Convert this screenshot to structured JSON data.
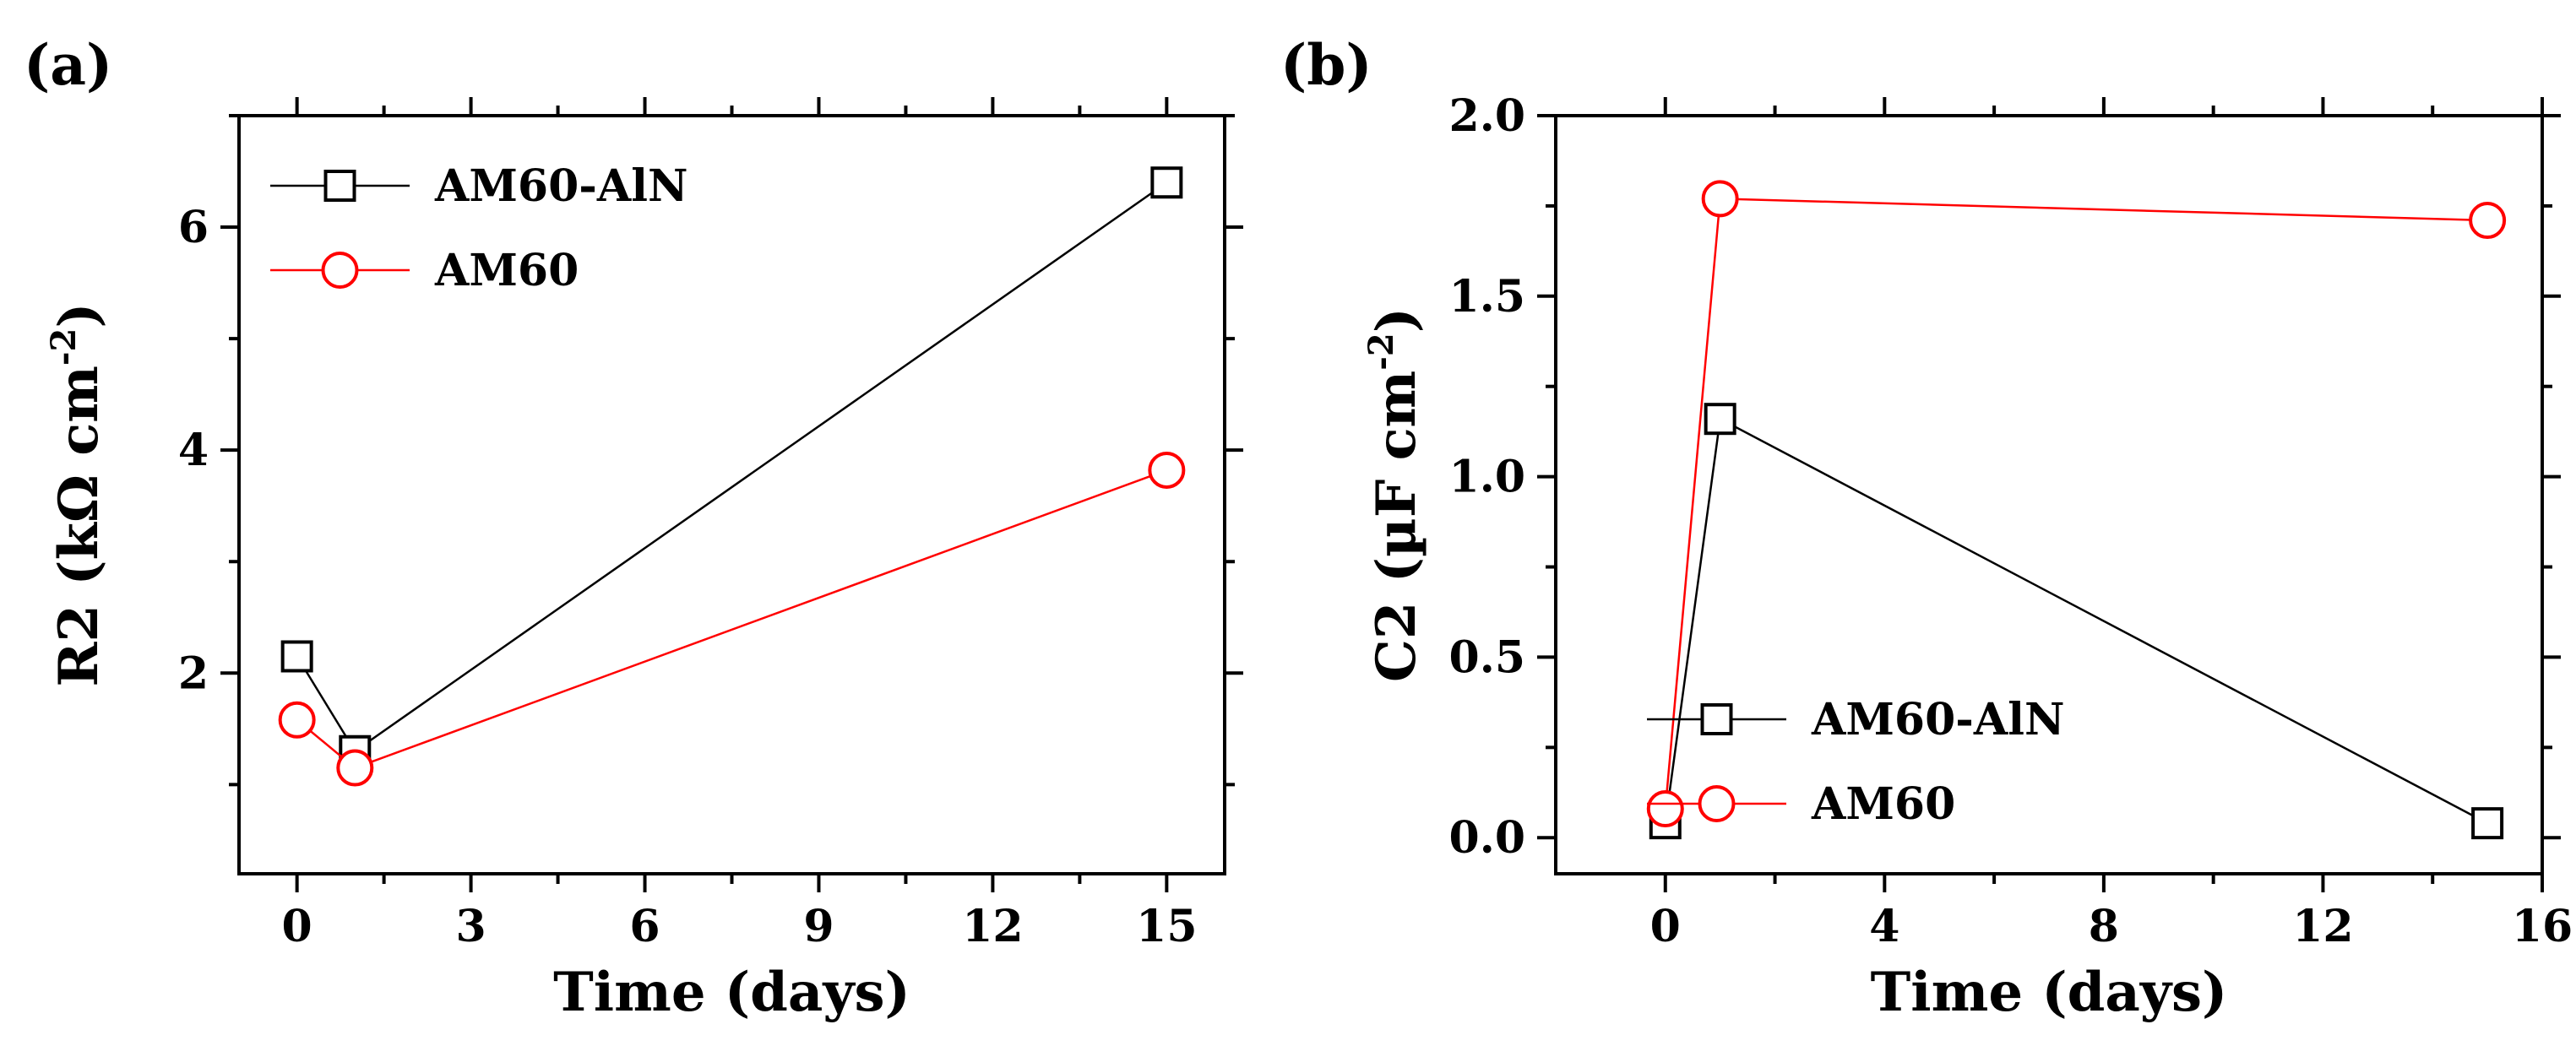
{
  "chart_data": [
    {
      "type": "line",
      "panel_label": "(a)",
      "title": "",
      "xlabel": "Time (days)",
      "ylabel": "R2 (kΩ cm",
      "ylabel_sup": "-2",
      "ylabel_close": ")",
      "xlim": [
        -1,
        16
      ],
      "ylim": [
        0.2,
        7
      ],
      "xticks": [
        0,
        3,
        6,
        9,
        12,
        15
      ],
      "xtick_labels": [
        "0",
        "3",
        "6",
        "9",
        "12",
        "15"
      ],
      "yticks": [
        2,
        4,
        6
      ],
      "ytick_labels": [
        "2",
        "4",
        "6"
      ],
      "legend_position": "top-left",
      "series": [
        {
          "name": "AM60-AlN",
          "marker": "square",
          "color": "#000000",
          "x": [
            0,
            1,
            15
          ],
          "y": [
            2.15,
            1.3,
            6.4
          ]
        },
        {
          "name": "AM60",
          "marker": "circle",
          "color": "#ff0000",
          "x": [
            0,
            1,
            15
          ],
          "y": [
            1.58,
            1.15,
            3.82
          ]
        }
      ]
    },
    {
      "type": "line",
      "panel_label": "(b)",
      "title": "",
      "xlabel": "Time (days)",
      "ylabel": "C2 (µF cm",
      "ylabel_sup": "-2",
      "ylabel_close": ")",
      "xlim": [
        -2,
        16
      ],
      "ylim": [
        -0.1,
        2.0
      ],
      "xticks": [
        0,
        4,
        8,
        12,
        16
      ],
      "xtick_labels": [
        "0",
        "4",
        "8",
        "12",
        "16"
      ],
      "yticks": [
        0.0,
        0.5,
        1.0,
        1.5,
        2.0
      ],
      "ytick_labels": [
        "0.0",
        "0.5",
        "1.0",
        "1.5",
        "2.0"
      ],
      "legend_position": "bottom-left",
      "series": [
        {
          "name": "AM60-AlN",
          "marker": "square",
          "color": "#000000",
          "x": [
            0,
            1,
            15
          ],
          "y": [
            0.04,
            1.16,
            0.04
          ]
        },
        {
          "name": "AM60",
          "marker": "circle",
          "color": "#ff0000",
          "x": [
            0,
            1,
            15
          ],
          "y": [
            0.08,
            1.77,
            1.71
          ]
        }
      ]
    }
  ]
}
